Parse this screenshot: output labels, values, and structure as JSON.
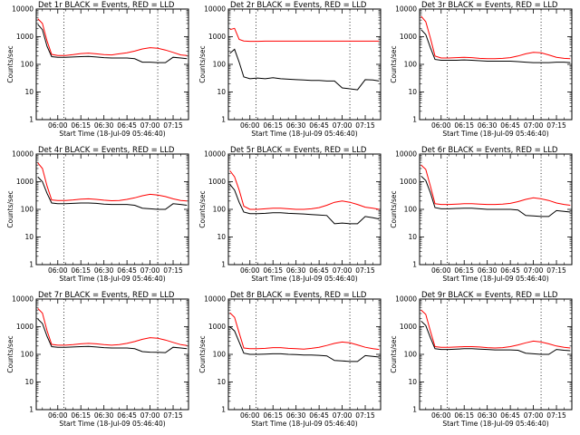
{
  "chart_data": {
    "type": "line",
    "colors": {
      "events": "#000000",
      "lld": "#ff0000"
    },
    "y_scale": "log",
    "ylim": [
      1,
      10000
    ],
    "xlim": [
      "05:46:40",
      "07:25:00"
    ],
    "ylabel": "Counts/sec",
    "xlabel": "Start Time (18-Jul-09 05:46:40)",
    "yticks": [
      1,
      10,
      100,
      1000,
      10000
    ],
    "ytick_labels": [
      "1",
      "10",
      "100",
      "1000",
      "10000"
    ],
    "xticks": [
      "06:00",
      "06:15",
      "06:30",
      "06:45",
      "07:00",
      "07:15"
    ],
    "x_values": [
      "05:47",
      "05:50",
      "05:53",
      "05:56",
      "06:00",
      "06:05",
      "06:10",
      "06:15",
      "06:20",
      "06:25",
      "06:30",
      "06:35",
      "06:40",
      "06:45",
      "06:50",
      "06:55",
      "07:00",
      "07:05",
      "07:10",
      "07:15",
      "07:20",
      "07:24"
    ],
    "dotted_markers": [
      "06:04",
      "07:05"
    ],
    "panels": [
      {
        "title": "Det 1r BLACK = Events, RED = LLD",
        "series": [
          {
            "name": "LLD",
            "color": "#ff0000",
            "values": [
              4500,
              3000,
              700,
              230,
              210,
              210,
              225,
              245,
              255,
              240,
              225,
              220,
              240,
              260,
              300,
              360,
              400,
              380,
              330,
              270,
              220,
              210
            ]
          },
          {
            "name": "Events",
            "color": "#000000",
            "values": [
              2800,
              1800,
              450,
              190,
              180,
              180,
              185,
              190,
              195,
              185,
              175,
              170,
              170,
              170,
              160,
              120,
              120,
              115,
              115,
              180,
              170,
              160
            ]
          }
        ]
      },
      {
        "title": "Det 2r BLACK = Events, RED = LLD",
        "series": [
          {
            "name": "LLD",
            "color": "#ff0000",
            "values": [
              1800,
              2000,
              800,
              700,
              680,
              680,
              690,
              690,
              690,
              690,
              690,
              690,
              690,
              690,
              690,
              690,
              690,
              690,
              690,
              690,
              690,
              690
            ]
          },
          {
            "name": "Events",
            "color": "#000000",
            "values": [
              250,
              350,
              120,
              35,
              30,
              32,
              30,
              33,
              30,
              29,
              28,
              27,
              26,
              26,
              25,
              25,
              14,
              13,
              12,
              28,
              27,
              25
            ]
          }
        ]
      },
      {
        "title": "Det 3r BLACK = Events, RED = LLD",
        "series": [
          {
            "name": "LLD",
            "color": "#ff0000",
            "values": [
              5500,
              3500,
              900,
              200,
              170,
              170,
              175,
              180,
              175,
              165,
              160,
              160,
              165,
              175,
              200,
              240,
              270,
              260,
              220,
              180,
              165,
              160
            ]
          },
          {
            "name": "Events",
            "color": "#000000",
            "values": [
              1800,
              1200,
              400,
              150,
              140,
              140,
              140,
              145,
              140,
              135,
              130,
              130,
              130,
              130,
              125,
              120,
              115,
              115,
              115,
              120,
              120,
              115
            ]
          }
        ]
      },
      {
        "title": "Det 4r BLACK = Events, RED = LLD",
        "series": [
          {
            "name": "LLD",
            "color": "#ff0000",
            "values": [
              4800,
              3000,
              700,
              220,
              210,
              210,
              220,
              235,
              240,
              230,
              215,
              205,
              210,
              230,
              260,
              310,
              350,
              330,
              290,
              240,
              210,
              200
            ]
          },
          {
            "name": "Events",
            "color": "#000000",
            "values": [
              1500,
              1000,
              380,
              170,
              160,
              160,
              165,
              170,
              170,
              165,
              155,
              150,
              150,
              150,
              140,
              110,
              105,
              100,
              100,
              160,
              150,
              140
            ]
          }
        ]
      },
      {
        "title": "Det 5r BLACK = Events, RED = LLD",
        "series": [
          {
            "name": "LLD",
            "color": "#ff0000",
            "values": [
              2500,
              1500,
              500,
              130,
              100,
              100,
              105,
              110,
              110,
              105,
              100,
              100,
              105,
              115,
              140,
              180,
              200,
              180,
              150,
              120,
              110,
              100
            ]
          },
          {
            "name": "Events",
            "color": "#000000",
            "values": [
              800,
              500,
              180,
              80,
              70,
              70,
              72,
              75,
              75,
              72,
              70,
              68,
              65,
              62,
              60,
              30,
              32,
              30,
              30,
              55,
              50,
              45
            ]
          }
        ]
      },
      {
        "title": "Det 6r BLACK = Events, RED = LLD",
        "series": [
          {
            "name": "LLD",
            "color": "#ff0000",
            "values": [
              4000,
              2800,
              700,
              160,
              150,
              150,
              155,
              160,
              160,
              155,
              150,
              150,
              155,
              165,
              190,
              230,
              260,
              240,
              210,
              170,
              150,
              140
            ]
          },
          {
            "name": "Events",
            "color": "#000000",
            "values": [
              1600,
              1100,
              400,
              115,
              105,
              105,
              108,
              110,
              110,
              105,
              100,
              100,
              100,
              100,
              95,
              60,
              58,
              55,
              55,
              90,
              85,
              80
            ]
          }
        ]
      },
      {
        "title": "Det 7r BLACK = Events, RED = LLD",
        "series": [
          {
            "name": "LLD",
            "color": "#ff0000",
            "values": [
              4600,
              3100,
              720,
              230,
              215,
              215,
              225,
              240,
              250,
              240,
              225,
              215,
              225,
              250,
              290,
              350,
              400,
              380,
              330,
              270,
              225,
              210
            ]
          },
          {
            "name": "Events",
            "color": "#000000",
            "values": [
              1900,
              1300,
              450,
              190,
              180,
              180,
              185,
              190,
              195,
              185,
              175,
              170,
              170,
              170,
              160,
              125,
              120,
              118,
              115,
              180,
              170,
              160
            ]
          }
        ]
      },
      {
        "title": "Det 8r BLACK = Events, RED = LLD",
        "series": [
          {
            "name": "LLD",
            "color": "#ff0000",
            "values": [
              3200,
              2200,
              600,
              170,
              160,
              160,
              165,
              175,
              175,
              165,
              160,
              155,
              165,
              180,
              210,
              250,
              280,
              260,
              220,
              180,
              160,
              150
            ]
          },
          {
            "name": "Events",
            "color": "#000000",
            "values": [
              1000,
              700,
              280,
              110,
              100,
              100,
              102,
              105,
              105,
              100,
              98,
              95,
              95,
              92,
              88,
              60,
              58,
              55,
              55,
              90,
              85,
              80
            ]
          }
        ]
      },
      {
        "title": "Det 9r BLACK = Events, RED = LLD",
        "series": [
          {
            "name": "LLD",
            "color": "#ff0000",
            "values": [
              4000,
              2800,
              700,
              190,
              180,
              180,
              185,
              190,
              190,
              185,
              175,
              170,
              175,
              190,
              220,
              260,
              300,
              280,
              240,
              200,
              180,
              170
            ]
          },
          {
            "name": "Events",
            "color": "#000000",
            "values": [
              1600,
              1100,
              400,
              160,
              150,
              150,
              155,
              160,
              160,
              155,
              150,
              145,
              145,
              145,
              140,
              110,
              105,
              100,
              100,
              150,
              140,
              135
            ]
          }
        ]
      }
    ]
  }
}
